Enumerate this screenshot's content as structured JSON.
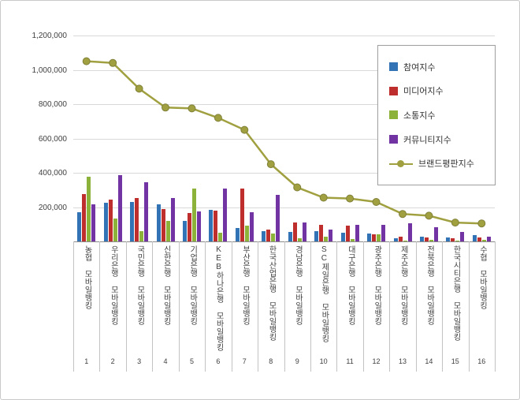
{
  "chart_data": {
    "type": "bar",
    "title": "",
    "categories": [
      "농협 모바일뱅킹",
      "우리은행 모바일뱅킹",
      "국민은행 모바일뱅킹",
      "신한은행 모바일뱅킹",
      "기업은행 모바일뱅킹",
      "KEB하나은행 모바일뱅킹",
      "부산은행 모바일뱅킹",
      "한국산업은행 모바일뱅킹",
      "경남은행 모바일뱅킹",
      "SC제일은행 모바일뱅킹",
      "대구은행 모바일뱅킹",
      "광주은행 모바일뱅킹",
      "제주은행 모바일뱅킹",
      "전북은행 모바일뱅킹",
      "한국시티은행 모바일뱅킹",
      "수협 모바일뱅킹"
    ],
    "category_numbers": [
      "1",
      "2",
      "3",
      "4",
      "5",
      "6",
      "7",
      "8",
      "9",
      "10",
      "11",
      "12",
      "13",
      "14",
      "15",
      "16"
    ],
    "bar_series": [
      {
        "name": "참여지수",
        "color": "#3173b5",
        "values": [
          170000,
          225000,
          230000,
          215000,
          120000,
          185000,
          80000,
          60000,
          55000,
          60000,
          50000,
          45000,
          20000,
          30000,
          25000,
          35000
        ]
      },
      {
        "name": "미디어지수",
        "color": "#be2e2c",
        "values": [
          275000,
          245000,
          255000,
          190000,
          165000,
          180000,
          310000,
          70000,
          110000,
          95000,
          90000,
          40000,
          30000,
          25000,
          20000,
          25000
        ]
      },
      {
        "name": "소통지수",
        "color": "#8cb23a",
        "values": [
          375000,
          135000,
          60000,
          120000,
          310000,
          50000,
          90000,
          45000,
          20000,
          30000,
          15000,
          40000,
          5000,
          10000,
          5000,
          10000
        ]
      },
      {
        "name": "커뮤니티지수",
        "color": "#7233a3",
        "values": [
          215000,
          385000,
          345000,
          255000,
          175000,
          310000,
          170000,
          270000,
          110000,
          70000,
          95000,
          95000,
          105000,
          85000,
          55000,
          30000
        ]
      }
    ],
    "line_series": {
      "name": "브랜드평판지수",
      "color": "#a0a040",
      "marker_stroke": "#80803a",
      "values": [
        1050000,
        1040000,
        890000,
        780000,
        775000,
        720000,
        650000,
        450000,
        315000,
        255000,
        250000,
        230000,
        160000,
        150000,
        110000,
        105000
      ]
    },
    "y_axis": {
      "min": 0,
      "max": 1200000,
      "step": 200000,
      "tick_labels": [
        "200,000",
        "400,000",
        "600,000",
        "800,000",
        "1,000,000",
        "1,200,000"
      ]
    },
    "legend_position": "top-right",
    "grid": true
  }
}
